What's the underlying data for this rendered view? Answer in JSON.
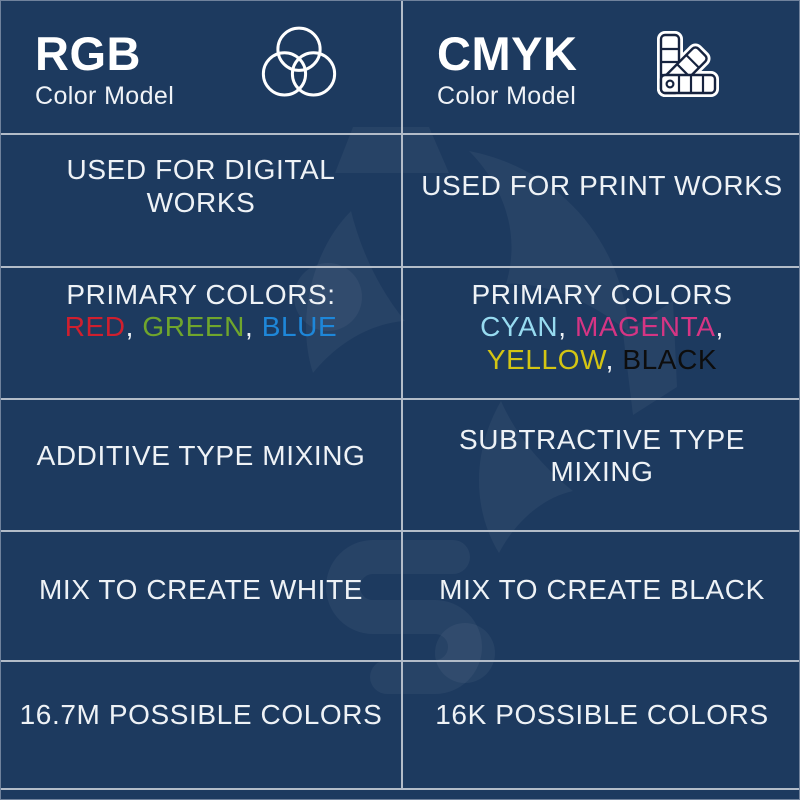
{
  "colors": {
    "background": "#1d3a5f",
    "grid_line": "#b3bcc8",
    "text": "#eef2f6"
  },
  "header": {
    "left": {
      "title": "RGB",
      "subtitle": "Color Model",
      "icon": "venn-circles-icon"
    },
    "right": {
      "title": "CMYK",
      "subtitle": "Color Model",
      "icon": "swatch-fan-icon"
    }
  },
  "rows": {
    "usage": {
      "left": "USED FOR DIGITAL WORKS",
      "right": "USED FOR PRINT WORKS"
    },
    "primary": {
      "left": {
        "heading": "PRIMARY COLORS:",
        "separator": ", ",
        "words": [
          {
            "text": "RED",
            "color": "#d01f2e"
          },
          {
            "text": "GREEN",
            "color": "#70a62c"
          },
          {
            "text": "BLUE",
            "color": "#1e87d9"
          }
        ]
      },
      "right": {
        "heading": "PRIMARY COLORS",
        "separator": ", ",
        "words": [
          {
            "text": "CYAN",
            "color": "#97dbf0"
          },
          {
            "text": "MAGENTA",
            "color": "#d53584"
          },
          {
            "text": "YELLOW",
            "color": "#d3c513"
          },
          {
            "text": "BLACK",
            "color": "#0d0d0d"
          }
        ]
      }
    },
    "mixing": {
      "left": "ADDITIVE TYPE MIXING",
      "right": "SUBTRACTIVE TYPE MIXING"
    },
    "mix_result": {
      "left": "MIX TO CREATE WHITE",
      "right": "MIX TO CREATE BLACK"
    },
    "gamut": {
      "left": "16.7M POSSIBLE COLORS",
      "right": "16K POSSIBLE COLORS"
    }
  }
}
